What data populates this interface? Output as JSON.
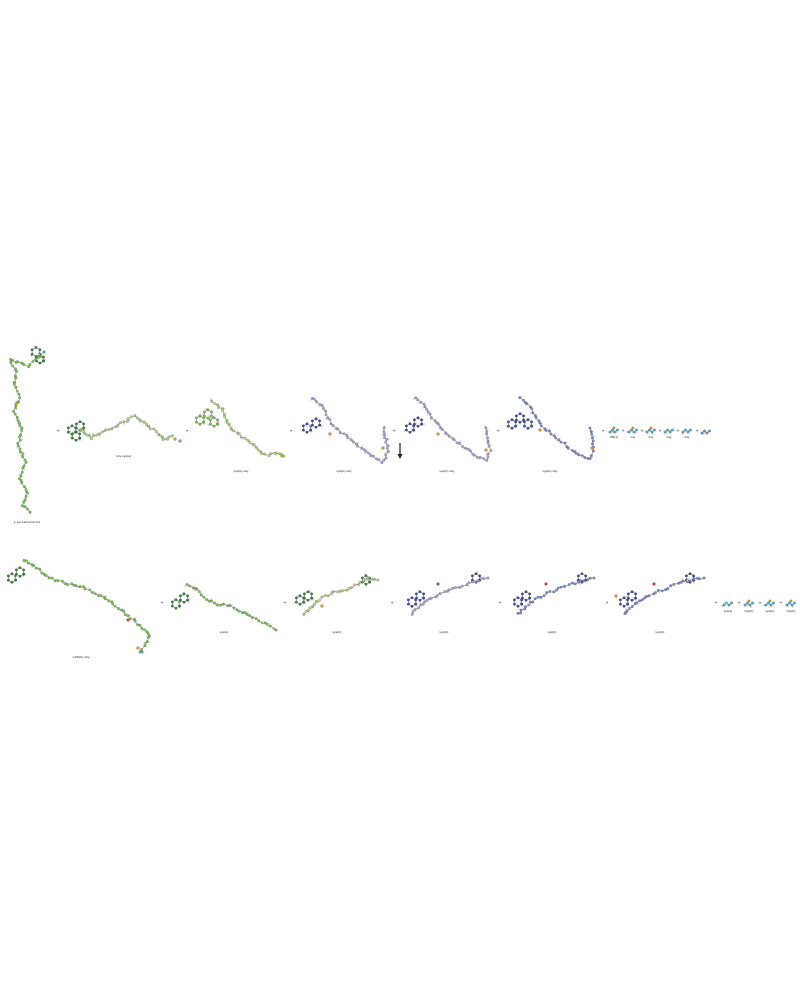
{
  "palette": {
    "green_dark": "#2f8a2f",
    "green": "#7ccf4e",
    "green_light": "#b7e08a",
    "blue_dark": "#3a4aa8",
    "blue": "#7f8fd6",
    "lavender": "#b9a8df",
    "red": "#e0413a",
    "orange": "#f0a020",
    "cyan": "#46bcd6",
    "bond": "#555555",
    "arrow": "#222222"
  },
  "labels": {
    "row1_m0": "L-Lys tetramer(4)",
    "row1_m1": "Gly-Lys(a)",
    "row1_m2": "Lys(b)-Gly",
    "row1_m3": "Lys(b)-Gly",
    "row1_m4": "Lys(b)-Gly",
    "row1_m5": "Lys(b)-Gly",
    "row1_s1": "HN(s)",
    "row1_s2": "Gly",
    "row1_s3": "Gly",
    "row1_s4": "Gly",
    "row1_s5": "Gly",
    "row2_m0": "vdW(b)-Gly",
    "row2_m1": "Lys(a)",
    "row2_m2": "Lys(b)",
    "row2_m3": "Lys(b)",
    "row2_m4": "Lys(b)",
    "row2_m5": "Lys(b)",
    "row2_s1": "Lys(s)",
    "row2_s2": "Gly(b)",
    "row2_s3": "Lys(b)",
    "row2_s4": "Gly(b)"
  },
  "plus_sign": "+"
}
